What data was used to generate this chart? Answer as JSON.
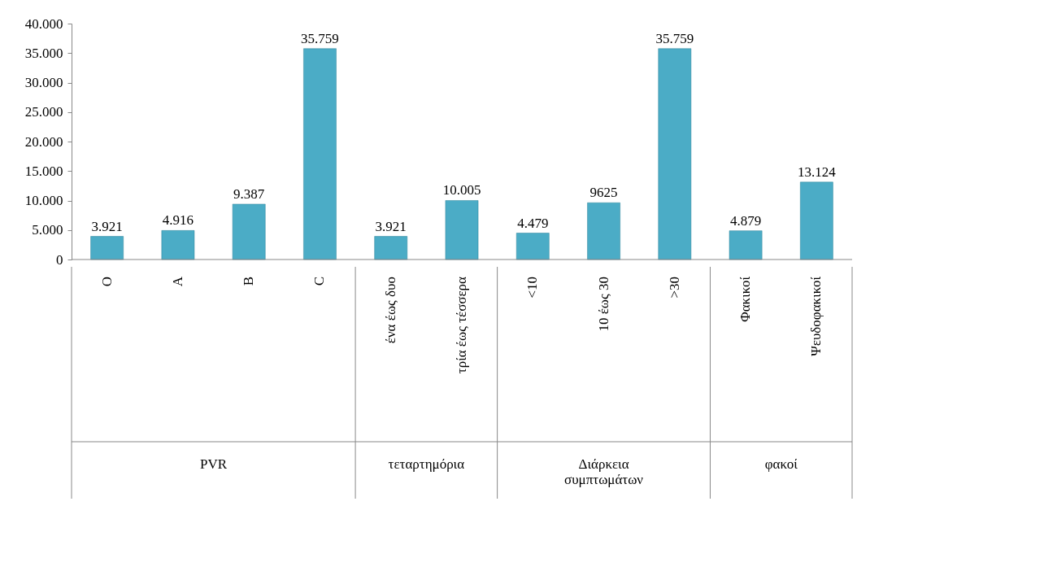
{
  "chart_data": {
    "type": "bar",
    "categories": [
      "O",
      "A",
      "B",
      "C",
      "ένα έως δυο",
      "τρία έως τέσσερα",
      "<10",
      "10 έως 30",
      ">30",
      "Φακικοί",
      "Ψευδοφακικοί"
    ],
    "values": [
      3921,
      4916,
      9387,
      35759,
      3921,
      10005,
      4479,
      9625,
      35759,
      4879,
      13124
    ],
    "value_labels": [
      "3.921",
      "4.916",
      "9.387",
      "35.759",
      "3.921",
      "10.005",
      "4.479",
      "9625",
      "35.759",
      "4.879",
      "13.124"
    ],
    "color": "#4bacc6",
    "ylim": [
      0,
      40000
    ],
    "yticks": [
      0,
      {
        "value": 5000,
        "label": "5.000"
      },
      {
        "value": 10000,
        "label": "10.000"
      },
      {
        "value": 15000,
        "label": "15.000"
      },
      {
        "value": 20000,
        "label": "20.000"
      },
      {
        "value": 25000,
        "label": "25.000"
      },
      {
        "value": 30000,
        "label": "30.000"
      },
      {
        "value": 35000,
        "label": "35.000"
      },
      {
        "value": 40000,
        "label": "40.000"
      }
    ],
    "annotations": [
      "PVR",
      "τεταρτημόρια",
      "Διάρκεια συμπτωμάτων",
      "φακοί"
    ],
    "grid": false
  }
}
